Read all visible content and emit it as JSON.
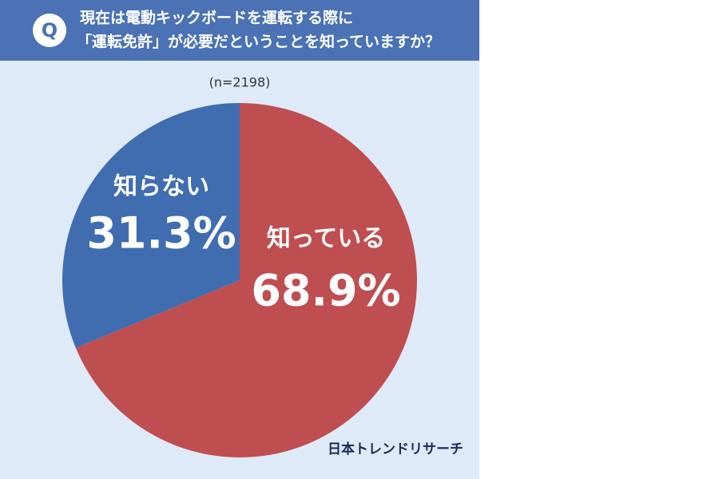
{
  "chart_data": {
    "type": "pie",
    "question_mark": "Q",
    "title": [
      "現在は電動キックボードを運転する際に",
      "「運転免許」が必要だということを知っていますか？"
    ],
    "subtitle": "(n=2198)",
    "source": "日本トレンドリサーチ",
    "categories": [
      "知っている",
      "知らない"
    ],
    "values": [
      68.9,
      31.3
    ],
    "value_labels": [
      "68.9%",
      "31.3%"
    ],
    "colors": [
      "#bf4e50",
      "#3f6db0"
    ]
  }
}
